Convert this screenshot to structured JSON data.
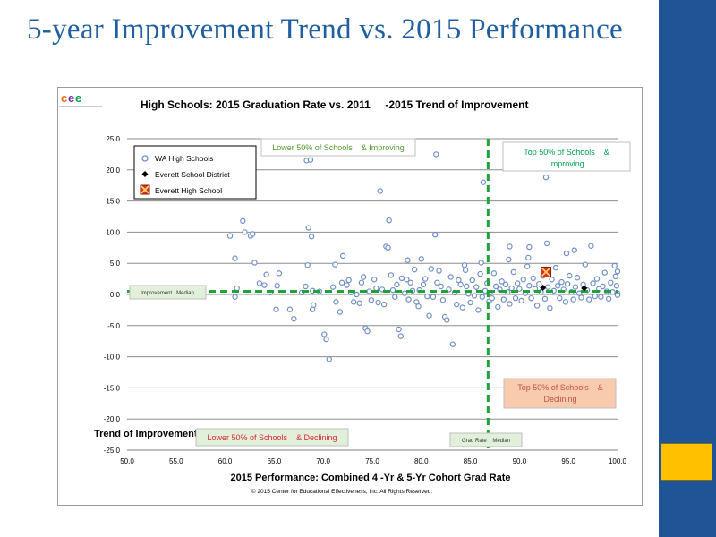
{
  "slide": {
    "title": "5-year Improvement Trend vs. 2015 Performance"
  },
  "logo": {
    "text": "cee",
    "colors": [
      "#e46c0a",
      "#7030a0",
      "#00a04a"
    ]
  },
  "chart_data": {
    "type": "scatter",
    "title": "High Schools: 2015 Graduation Rate vs. 2011     -2015 Trend of Improvement",
    "xlabel": "2015 Performance: Combined 4 -Yr & 5-Yr Cohort Grad Rate",
    "ylabel": "Trend of Improvement (change in grad rate per year)",
    "xlim": [
      50,
      100
    ],
    "ylim": [
      -25,
      25
    ],
    "xticks": [
      "50.0",
      "55.0",
      "60.0",
      "65.0",
      "70.0",
      "75.0",
      "80.0",
      "85.0",
      "90.0",
      "95.0",
      "100.0"
    ],
    "yticks": [
      "25.0",
      "20.0",
      "15.0",
      "10.0",
      "5.0",
      "0.0",
      "-5.0",
      "-10.0",
      "-15.0",
      "-20.0",
      "-25.0"
    ],
    "grid": true,
    "legend_position": "top-left",
    "medians": {
      "grad_rate": 86.8,
      "improvement": 0.5
    },
    "copyright": "© 2015 Center for Educational Effectiveness, Inc. All Rights Reserved.",
    "quadrant_labels": {
      "top_left": "Lower 50% of Schools    & Improving",
      "top_right_1": "Top 50% of Schools    &",
      "top_right_2": "Improving",
      "bottom_left": "Lower 50% of Schools    & Declining",
      "bottom_right_1": "Top 50% of Schools    &",
      "bottom_right_2": "Declining",
      "improvement_median": "Improvement   Median",
      "grad_rate_median": "Grad Rate    Median"
    },
    "series": [
      {
        "name": "WA High Schools",
        "marker": "circle",
        "color": "#6f8fc7",
        "points": [
          [
            60.5,
            9.4
          ],
          [
            61.0,
            5.8
          ],
          [
            61.2,
            1.0
          ],
          [
            61.0,
            -0.4
          ],
          [
            61.8,
            11.8
          ],
          [
            62.0,
            10.0
          ],
          [
            62.6,
            9.4
          ],
          [
            62.8,
            9.7
          ],
          [
            63.0,
            5.1
          ],
          [
            63.5,
            1.8
          ],
          [
            64.0,
            1.5
          ],
          [
            64.2,
            3.2
          ],
          [
            64.6,
            0.3
          ],
          [
            65.3,
            1.4
          ],
          [
            65.5,
            3.4
          ],
          [
            65.2,
            -2.4
          ],
          [
            66.6,
            -2.4
          ],
          [
            67.0,
            -3.9
          ],
          [
            67.8,
            0.3
          ],
          [
            68.2,
            1.3
          ],
          [
            68.4,
            4.7
          ],
          [
            68.3,
            21.5
          ],
          [
            68.7,
            21.6
          ],
          [
            68.5,
            10.7
          ],
          [
            68.8,
            9.3
          ],
          [
            68.9,
            0.6
          ],
          [
            69.0,
            -1.7
          ],
          [
            68.9,
            -2.4
          ],
          [
            69.6,
            0.5
          ],
          [
            70.1,
            -6.4
          ],
          [
            70.3,
            -7.2
          ],
          [
            70.6,
            -10.4
          ],
          [
            71.0,
            1.2
          ],
          [
            71.2,
            4.8
          ],
          [
            71.3,
            -1.2
          ],
          [
            71.7,
            -2.8
          ],
          [
            71.9,
            1.9
          ],
          [
            72.0,
            6.2
          ],
          [
            72.4,
            1.5
          ],
          [
            72.6,
            2.3
          ],
          [
            72.8,
            0.3
          ],
          [
            73.1,
            -1.2
          ],
          [
            73.4,
            0.0
          ],
          [
            73.7,
            -1.4
          ],
          [
            73.9,
            1.9
          ],
          [
            74.1,
            2.8
          ],
          [
            74.3,
            -5.4
          ],
          [
            74.5,
            -5.9
          ],
          [
            74.7,
            0.5
          ],
          [
            74.9,
            -0.9
          ],
          [
            75.2,
            2.4
          ],
          [
            75.4,
            1.0
          ],
          [
            75.6,
            -1.3
          ],
          [
            75.8,
            16.6
          ],
          [
            76.0,
            0.8
          ],
          [
            76.2,
            -1.6
          ],
          [
            76.4,
            7.7
          ],
          [
            76.6,
            7.5
          ],
          [
            76.7,
            11.9
          ],
          [
            76.9,
            3.1
          ],
          [
            77.1,
            0.7
          ],
          [
            77.3,
            -0.4
          ],
          [
            77.5,
            1.6
          ],
          [
            77.7,
            -5.6
          ],
          [
            77.9,
            -6.7
          ],
          [
            78.0,
            2.6
          ],
          [
            78.3,
            0.2
          ],
          [
            78.5,
            2.4
          ],
          [
            78.7,
            -0.8
          ],
          [
            78.9,
            1.9
          ],
          [
            79.1,
            0.6
          ],
          [
            79.3,
            4.0
          ],
          [
            79.5,
            -1.2
          ],
          [
            79.7,
            -1.9
          ],
          [
            79.8,
            0.7
          ],
          [
            80.0,
            5.7
          ],
          [
            80.2,
            1.6
          ],
          [
            80.4,
            2.5
          ],
          [
            80.6,
            -0.3
          ],
          [
            80.8,
            -3.4
          ],
          [
            81.0,
            4.1
          ],
          [
            81.2,
            -0.4
          ],
          [
            81.4,
            9.6
          ],
          [
            81.5,
            22.5
          ],
          [
            81.6,
            1.9
          ],
          [
            81.8,
            3.8
          ],
          [
            82.0,
            1.3
          ],
          [
            82.2,
            -0.9
          ],
          [
            82.4,
            -3.6
          ],
          [
            82.6,
            -4.1
          ],
          [
            82.8,
            0.8
          ],
          [
            83.0,
            2.8
          ],
          [
            83.2,
            -8.0
          ],
          [
            83.4,
            0.3
          ],
          [
            83.6,
            -1.6
          ],
          [
            83.8,
            2.3
          ],
          [
            84.0,
            1.6
          ],
          [
            84.2,
            -2.1
          ],
          [
            84.4,
            4.7
          ],
          [
            84.6,
            1.3
          ],
          [
            84.8,
            0.1
          ],
          [
            85.0,
            -1.3
          ],
          [
            85.2,
            2.3
          ],
          [
            85.4,
            -0.2
          ],
          [
            85.6,
            1.2
          ],
          [
            85.8,
            -2.5
          ],
          [
            86.0,
            3.3
          ],
          [
            86.2,
            -0.4
          ],
          [
            86.3,
            18.0
          ],
          [
            86.5,
            0.6
          ],
          [
            86.7,
            1.8
          ],
          [
            86.9,
            -1.1
          ],
          [
            87.0,
            0.3
          ],
          [
            87.2,
            -0.6
          ],
          [
            87.4,
            3.4
          ],
          [
            87.6,
            1.3
          ],
          [
            87.8,
            -2.0
          ],
          [
            88.0,
            0.8
          ],
          [
            88.2,
            2.1
          ],
          [
            88.4,
            -0.8
          ],
          [
            88.6,
            1.6
          ],
          [
            88.8,
            0.4
          ],
          [
            89.0,
            -1.5
          ],
          [
            89.2,
            1.0
          ],
          [
            89.4,
            3.6
          ],
          [
            89.6,
            -0.6
          ],
          [
            89.8,
            1.8
          ],
          [
            90.0,
            0.9
          ],
          [
            90.2,
            -1.0
          ],
          [
            90.4,
            2.4
          ],
          [
            90.6,
            0.2
          ],
          [
            90.8,
            4.5
          ],
          [
            91.0,
            1.4
          ],
          [
            91.2,
            -0.6
          ],
          [
            91.4,
            2.6
          ],
          [
            91.6,
            0.9
          ],
          [
            91.8,
            -1.8
          ],
          [
            92.0,
            1.7
          ],
          [
            92.2,
            0.4
          ],
          [
            92.4,
            3.0
          ],
          [
            92.6,
            -0.7
          ],
          [
            92.7,
            18.8
          ],
          [
            92.9,
            1.2
          ],
          [
            93.1,
            -2.2
          ],
          [
            93.3,
            2.4
          ],
          [
            93.5,
            0.6
          ],
          [
            93.7,
            4.3
          ],
          [
            93.9,
            1.4
          ],
          [
            94.1,
            -0.6
          ],
          [
            94.3,
            2.0
          ],
          [
            94.5,
            0.8
          ],
          [
            94.7,
            -1.2
          ],
          [
            94.9,
            1.7
          ],
          [
            95.1,
            3.0
          ],
          [
            95.3,
            0.4
          ],
          [
            95.5,
            -0.8
          ],
          [
            95.7,
            1.2
          ],
          [
            95.9,
            2.7
          ],
          [
            96.1,
            0.2
          ],
          [
            96.3,
            -0.5
          ],
          [
            96.5,
            1.6
          ],
          [
            96.7,
            4.8
          ],
          [
            96.9,
            0.7
          ],
          [
            97.1,
            -0.8
          ],
          [
            97.3,
            7.8
          ],
          [
            97.5,
            1.8
          ],
          [
            97.7,
            -0.3
          ],
          [
            97.9,
            2.5
          ],
          [
            98.1,
            0.9
          ],
          [
            98.3,
            -0.4
          ],
          [
            98.5,
            1.3
          ],
          [
            98.7,
            3.5
          ],
          [
            98.9,
            0.5
          ],
          [
            99.1,
            -0.7
          ],
          [
            99.3,
            1.9
          ],
          [
            99.5,
            0.4
          ],
          [
            99.7,
            4.6
          ],
          [
            99.8,
            2.9
          ],
          [
            99.9,
            1.4
          ],
          [
            100.0,
            0.2
          ],
          [
            100.0,
            3.7
          ],
          [
            100.0,
            -0.1
          ],
          [
            89.0,
            7.7
          ],
          [
            91.0,
            7.6
          ],
          [
            92.8,
            8.2
          ],
          [
            95.6,
            7.1
          ],
          [
            78.6,
            5.5
          ],
          [
            84.5,
            3.9
          ],
          [
            86.1,
            5.1
          ],
          [
            88.9,
            5.6
          ],
          [
            90.9,
            5.9
          ],
          [
            94.8,
            6.6
          ]
        ]
      },
      {
        "name": "Everett School District",
        "marker": "diamond",
        "color": "#000000",
        "points": [
          [
            92.4,
            1.1
          ],
          [
            96.6,
            1.0
          ]
        ]
      },
      {
        "name": "Everett High School",
        "marker": "square-x",
        "color": "#e0301e",
        "points": [
          [
            92.7,
            3.6
          ]
        ]
      }
    ]
  }
}
